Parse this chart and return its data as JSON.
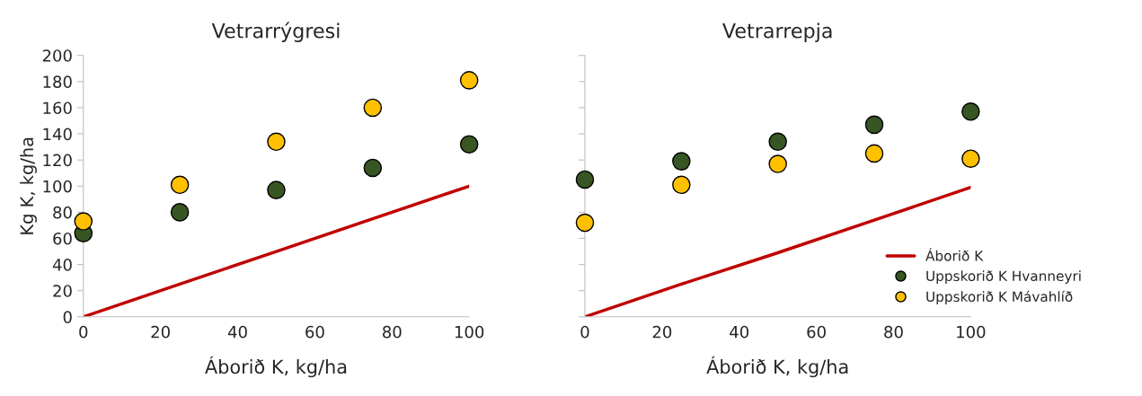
{
  "chart_data": [
    {
      "type": "scatter",
      "title": "Vetrarrýgresi",
      "xlabel": "Áborið K, kg/ha",
      "ylabel": "Kg K, kg/ha",
      "x": [
        0,
        25,
        50,
        75,
        100
      ],
      "xlim": [
        0,
        100
      ],
      "xticks": [
        0,
        20,
        40,
        60,
        80,
        100
      ],
      "ylim": [
        0,
        200
      ],
      "yticks": [
        0,
        20,
        40,
        60,
        80,
        100,
        120,
        140,
        160,
        180,
        200
      ],
      "marker": "circle",
      "grid": false,
      "legend": false,
      "series": [
        {
          "type": "line",
          "marker": "none",
          "color": "#c00000",
          "values": [
            0,
            25,
            50,
            75,
            100
          ]
        },
        {
          "color": "#375623",
          "values": [
            64,
            80,
            97,
            114,
            132
          ]
        },
        {
          "color": "#ffc000",
          "values": [
            73,
            101,
            134,
            160,
            181
          ]
        }
      ]
    },
    {
      "type": "scatter",
      "title": "Vetrarrepja",
      "xlabel": "Áborið K, kg/ha",
      "x": [
        0,
        25,
        50,
        75,
        100
      ],
      "xlim": [
        0,
        100
      ],
      "xticks": [
        0,
        20,
        40,
        60,
        80,
        100
      ],
      "ylim": [
        0,
        200
      ],
      "yticks": [
        0,
        20,
        40,
        60,
        80,
        100,
        120,
        140,
        160,
        180,
        200
      ],
      "tick_labels": "x",
      "marker": "circle",
      "grid": false,
      "legend": "bottom right",
      "series": [
        {
          "type": "line",
          "marker": "none",
          "name": "Áborið K",
          "color": "#c00000",
          "values": [
            0,
            25,
            49,
            74,
            99
          ]
        },
        {
          "name": "Uppskorið K Hvanneyri",
          "color": "#375623",
          "values": [
            105,
            119,
            134,
            147,
            157
          ]
        },
        {
          "name": "Uppskorið K Mávahlíð",
          "color": "#ffc000",
          "values": [
            72,
            101,
            117,
            125,
            121
          ]
        }
      ]
    }
  ]
}
